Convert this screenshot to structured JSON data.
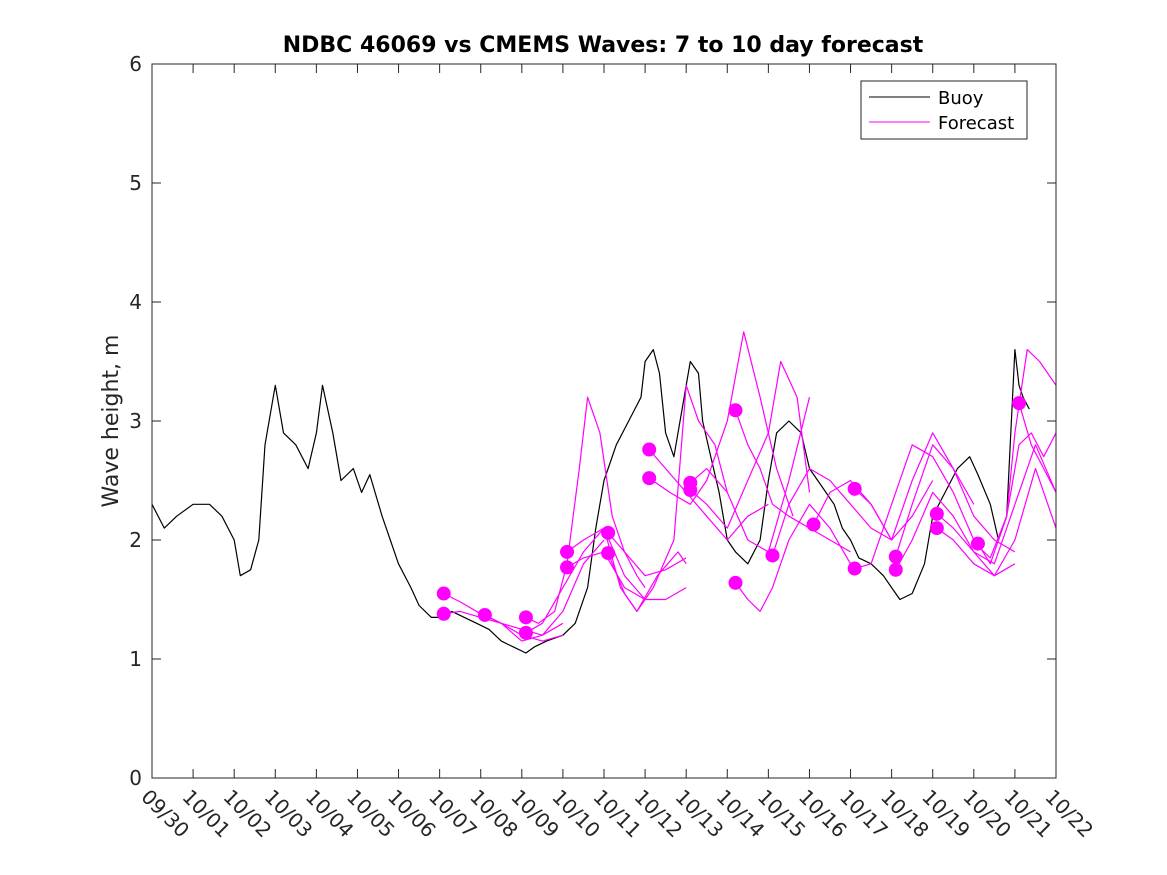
{
  "chart_data": {
    "type": "line",
    "title": "NDBC 46069 vs CMEMS Waves: 7 to 10 day forecast",
    "xlabel": "",
    "ylabel": "Wave height, m",
    "xlim": [
      0,
      22
    ],
    "ylim": [
      0,
      6
    ],
    "x_unit": "days since 09/30",
    "x_tick_values": [
      0,
      1,
      2,
      3,
      4,
      5,
      6,
      7,
      8,
      9,
      10,
      11,
      12,
      13,
      14,
      15,
      16,
      17,
      18,
      19,
      20,
      21,
      22
    ],
    "x_tick_labels": [
      "09/30",
      "10/01",
      "10/02",
      "10/03",
      "10/04",
      "10/05",
      "10/06",
      "10/07",
      "10/08",
      "10/09",
      "10/10",
      "10/11",
      "10/12",
      "10/13",
      "10/14",
      "10/15",
      "10/16",
      "10/17",
      "10/18",
      "10/19",
      "10/20",
      "10/21",
      "10/22"
    ],
    "y_ticks": [
      0,
      1,
      2,
      3,
      4,
      5,
      6
    ],
    "y_tick_labels": [
      "0",
      "1",
      "2",
      "3",
      "4",
      "5",
      "6"
    ],
    "legend": {
      "position": "top-right",
      "entries": [
        {
          "label": "Buoy",
          "color": "#000000"
        },
        {
          "label": "Forecast",
          "color": "#ff00ff"
        }
      ]
    },
    "series": [
      {
        "name": "Buoy",
        "color": "#000000",
        "x": [
          0,
          0.3,
          0.6,
          1.0,
          1.4,
          1.7,
          2.0,
          2.15,
          2.4,
          2.6,
          2.75,
          3.0,
          3.2,
          3.5,
          3.8,
          4.0,
          4.15,
          4.4,
          4.6,
          4.9,
          5.1,
          5.3,
          5.6,
          5.8,
          6.0,
          6.3,
          6.5,
          6.8,
          7.0,
          7.3,
          7.6,
          7.9,
          8.2,
          8.5,
          8.8,
          9.1,
          9.3,
          9.6,
          10.0,
          10.3,
          10.6,
          10.8,
          11.0,
          11.3,
          11.6,
          11.9,
          12.0,
          12.2,
          12.35,
          12.5,
          12.7,
          12.9,
          13.1,
          13.3,
          13.4,
          13.6,
          13.8,
          14.0,
          14.2,
          14.5,
          14.8,
          15.0,
          15.2,
          15.5,
          15.8,
          16.0,
          16.3,
          16.6,
          16.8,
          17.0,
          17.2,
          17.5,
          17.8,
          18.0,
          18.2,
          18.5,
          18.8,
          19.0,
          19.3,
          19.6,
          19.9,
          20.1,
          20.4,
          20.6,
          20.8,
          20.9,
          21.0,
          21.1,
          21.2,
          21.35
        ],
        "y": [
          2.3,
          2.1,
          2.2,
          2.3,
          2.3,
          2.2,
          2.0,
          1.7,
          1.75,
          2.0,
          2.8,
          3.3,
          2.9,
          2.8,
          2.6,
          2.9,
          3.3,
          2.9,
          2.5,
          2.6,
          2.4,
          2.55,
          2.2,
          2.0,
          1.8,
          1.6,
          1.45,
          1.35,
          1.35,
          1.4,
          1.35,
          1.3,
          1.25,
          1.15,
          1.1,
          1.05,
          1.1,
          1.15,
          1.2,
          1.3,
          1.6,
          2.1,
          2.5,
          2.8,
          3.0,
          3.2,
          3.5,
          3.6,
          3.4,
          2.9,
          2.7,
          3.1,
          3.5,
          3.4,
          3.0,
          2.7,
          2.4,
          2.0,
          1.9,
          1.8,
          2.0,
          2.5,
          2.9,
          3.0,
          2.9,
          2.6,
          2.45,
          2.3,
          2.1,
          2.0,
          1.85,
          1.8,
          1.7,
          1.6,
          1.5,
          1.55,
          1.8,
          2.2,
          2.4,
          2.6,
          2.7,
          2.55,
          2.3,
          2.0,
          2.2,
          2.9,
          3.6,
          3.3,
          3.2,
          3.1
        ]
      },
      {
        "name": "Forecast 10/07",
        "color": "#ff00ff",
        "x": [
          7.1,
          7.5,
          8.0,
          8.5,
          9.0,
          9.5,
          10.0
        ],
        "y": [
          1.55,
          1.48,
          1.38,
          1.3,
          1.2,
          1.15,
          1.2
        ]
      },
      {
        "name": "Forecast 10/07b",
        "color": "#ff00ff",
        "x": [
          7.1,
          7.5,
          8.0,
          8.5,
          9.0,
          9.5,
          10.0
        ],
        "y": [
          1.38,
          1.4,
          1.35,
          1.3,
          1.25,
          1.2,
          1.3
        ]
      },
      {
        "name": "Forecast 10/08",
        "color": "#ff00ff",
        "x": [
          8.1,
          8.5,
          9.0,
          9.5,
          10.0,
          10.5,
          11.0
        ],
        "y": [
          1.37,
          1.3,
          1.15,
          1.2,
          1.4,
          1.8,
          2.0
        ]
      },
      {
        "name": "Forecast 10/09",
        "color": "#ff00ff",
        "x": [
          9.1,
          9.4,
          9.8,
          10.1,
          10.4,
          10.6,
          10.9,
          11.2,
          11.5,
          11.8,
          12.0
        ],
        "y": [
          1.35,
          1.3,
          1.4,
          1.8,
          2.6,
          3.2,
          2.9,
          2.2,
          1.9,
          1.7,
          1.6
        ]
      },
      {
        "name": "Forecast 10/09b",
        "color": "#ff00ff",
        "x": [
          9.1,
          9.5,
          10.0,
          10.5,
          11.0,
          11.5,
          12.0
        ],
        "y": [
          1.22,
          1.3,
          1.6,
          1.9,
          2.1,
          1.7,
          1.5
        ]
      },
      {
        "name": "Forecast 10/10",
        "color": "#ff00ff",
        "x": [
          10.1,
          10.5,
          11.0,
          11.4,
          11.8,
          12.3,
          12.8,
          13.0
        ],
        "y": [
          1.9,
          2.0,
          2.1,
          1.6,
          1.4,
          1.7,
          1.9,
          1.8
        ]
      },
      {
        "name": "Forecast 10/10b",
        "color": "#ff00ff",
        "x": [
          10.1,
          10.5,
          11.0,
          11.5,
          12.0,
          12.5,
          13.0
        ],
        "y": [
          1.77,
          1.85,
          1.9,
          1.6,
          1.5,
          1.5,
          1.6
        ]
      },
      {
        "name": "Forecast 10/11",
        "color": "#ff00ff",
        "x": [
          11.1,
          11.5,
          12.0,
          12.5,
          13.0
        ],
        "y": [
          2.06,
          1.9,
          1.7,
          1.75,
          1.85
        ]
      },
      {
        "name": "Forecast 10/11b",
        "color": "#ff00ff",
        "x": [
          11.1,
          11.5,
          11.8,
          12.2,
          12.7,
          13.0,
          13.3,
          13.7,
          14.0
        ],
        "y": [
          1.89,
          1.55,
          1.4,
          1.6,
          2.0,
          3.3,
          3.0,
          2.8,
          2.4
        ]
      },
      {
        "name": "Forecast 10/12",
        "color": "#ff00ff",
        "x": [
          12.1,
          12.5,
          13.0,
          13.5,
          14.0,
          14.5,
          15.0
        ],
        "y": [
          2.76,
          2.6,
          2.4,
          2.2,
          2.0,
          2.2,
          2.3
        ]
      },
      {
        "name": "Forecast 10/12b",
        "color": "#ff00ff",
        "x": [
          12.1,
          12.6,
          13.1,
          13.5,
          14.0,
          14.4,
          14.8,
          15.2,
          15.6
        ],
        "y": [
          2.52,
          2.4,
          2.3,
          2.5,
          3.0,
          3.75,
          3.2,
          2.6,
          2.2
        ]
      },
      {
        "name": "Forecast 10/13",
        "color": "#ff00ff",
        "x": [
          13.1,
          13.5,
          14.0,
          14.5,
          15.0,
          15.5,
          16.0
        ],
        "y": [
          2.48,
          2.6,
          2.4,
          2.0,
          1.9,
          2.5,
          3.2
        ]
      },
      {
        "name": "Forecast 10/13b",
        "color": "#ff00ff",
        "x": [
          13.1,
          13.5,
          14.0,
          14.5,
          15.0,
          15.3,
          15.7,
          16.0
        ],
        "y": [
          2.42,
          2.3,
          2.1,
          2.5,
          2.9,
          3.5,
          3.2,
          2.4
        ]
      },
      {
        "name": "Forecast 10/14",
        "color": "#ff00ff",
        "x": [
          14.2,
          14.5,
          14.8,
          15.1,
          15.5,
          16.0,
          16.5,
          17.0
        ],
        "y": [
          3.09,
          2.8,
          2.6,
          2.3,
          2.2,
          2.1,
          2.0,
          1.9
        ]
      },
      {
        "name": "Forecast 10/14b",
        "color": "#ff00ff",
        "x": [
          14.2,
          14.5,
          14.8,
          15.1,
          15.5,
          16.0,
          16.5,
          17.0
        ],
        "y": [
          1.64,
          1.5,
          1.4,
          1.6,
          2.0,
          2.3,
          2.1,
          1.8
        ]
      },
      {
        "name": "Forecast 10/15",
        "color": "#ff00ff",
        "x": [
          15.1,
          15.5,
          16.0,
          16.5,
          17.0,
          17.5,
          18.0
        ],
        "y": [
          1.87,
          2.3,
          2.6,
          2.5,
          2.3,
          2.1,
          2.0
        ]
      },
      {
        "name": "Forecast 10/16",
        "color": "#ff00ff",
        "x": [
          16.1,
          16.5,
          17.0,
          17.5,
          18.0,
          18.5,
          19.0
        ],
        "y": [
          2.13,
          2.4,
          2.5,
          2.3,
          2.0,
          2.2,
          2.5
        ]
      },
      {
        "name": "Forecast 10/17",
        "color": "#ff00ff",
        "x": [
          17.1,
          17.5,
          18.0,
          18.5,
          19.0,
          19.5,
          20.0
        ],
        "y": [
          2.43,
          2.3,
          2.0,
          2.5,
          2.9,
          2.6,
          2.3
        ]
      },
      {
        "name": "Forecast 10/17b",
        "color": "#ff00ff",
        "x": [
          17.1,
          17.5,
          18.0,
          18.5,
          19.0,
          19.5,
          20.0
        ],
        "y": [
          1.76,
          1.8,
          2.3,
          2.8,
          2.7,
          2.4,
          2.0
        ]
      },
      {
        "name": "Forecast 10/18",
        "color": "#ff00ff",
        "x": [
          18.1,
          18.5,
          19.0,
          19.5,
          20.0,
          20.5,
          21.0
        ],
        "y": [
          1.86,
          2.3,
          2.8,
          2.6,
          2.2,
          2.0,
          1.9
        ]
      },
      {
        "name": "Forecast 10/18b",
        "color": "#ff00ff",
        "x": [
          18.1,
          18.5,
          19.0,
          19.5,
          20.0,
          20.5,
          21.0
        ],
        "y": [
          1.75,
          2.0,
          2.4,
          2.2,
          1.9,
          1.7,
          1.8
        ]
      },
      {
        "name": "Forecast 10/19",
        "color": "#ff00ff",
        "x": [
          19.1,
          19.5,
          20.0,
          20.5,
          21.0,
          21.5,
          22.0
        ],
        "y": [
          2.22,
          2.1,
          1.9,
          1.8,
          2.3,
          2.8,
          2.4
        ]
      },
      {
        "name": "Forecast 10/19b",
        "color": "#ff00ff",
        "x": [
          19.1,
          19.5,
          20.0,
          20.5,
          21.0,
          21.5,
          22.0
        ],
        "y": [
          2.1,
          2.0,
          1.8,
          1.7,
          2.0,
          2.6,
          2.1
        ]
      },
      {
        "name": "Forecast 10/20",
        "color": "#ff00ff",
        "x": [
          20.1,
          20.4,
          20.8,
          21.0,
          21.3,
          21.6,
          22.0
        ],
        "y": [
          1.97,
          1.8,
          2.2,
          2.9,
          3.6,
          3.5,
          3.3
        ]
      },
      {
        "name": "Forecast 10/20b",
        "color": "#ff00ff",
        "x": [
          20.1,
          20.4,
          20.8,
          21.1,
          21.4,
          21.7,
          22.0
        ],
        "y": [
          1.95,
          1.85,
          2.2,
          2.8,
          2.9,
          2.7,
          2.9
        ]
      },
      {
        "name": "Forecast 10/21",
        "color": "#ff00ff",
        "x": [
          21.1,
          21.4,
          21.7,
          22.0
        ],
        "y": [
          3.15,
          2.8,
          2.6,
          2.4
        ]
      }
    ],
    "markers": {
      "name": "Forecast start points",
      "color": "#ff00ff",
      "points": [
        [
          7.1,
          1.55
        ],
        [
          7.1,
          1.38
        ],
        [
          8.1,
          1.37
        ],
        [
          9.1,
          1.35
        ],
        [
          9.1,
          1.22
        ],
        [
          10.1,
          1.9
        ],
        [
          10.1,
          1.77
        ],
        [
          11.1,
          2.06
        ],
        [
          11.1,
          1.89
        ],
        [
          12.1,
          2.76
        ],
        [
          12.1,
          2.52
        ],
        [
          13.1,
          2.48
        ],
        [
          13.1,
          2.42
        ],
        [
          14.2,
          3.09
        ],
        [
          14.2,
          1.64
        ],
        [
          15.1,
          1.87
        ],
        [
          16.1,
          2.13
        ],
        [
          17.1,
          2.43
        ],
        [
          17.1,
          1.76
        ],
        [
          18.1,
          1.86
        ],
        [
          18.1,
          1.75
        ],
        [
          19.1,
          2.22
        ],
        [
          19.1,
          2.1
        ],
        [
          20.1,
          1.97
        ],
        [
          21.1,
          3.15
        ]
      ]
    }
  }
}
